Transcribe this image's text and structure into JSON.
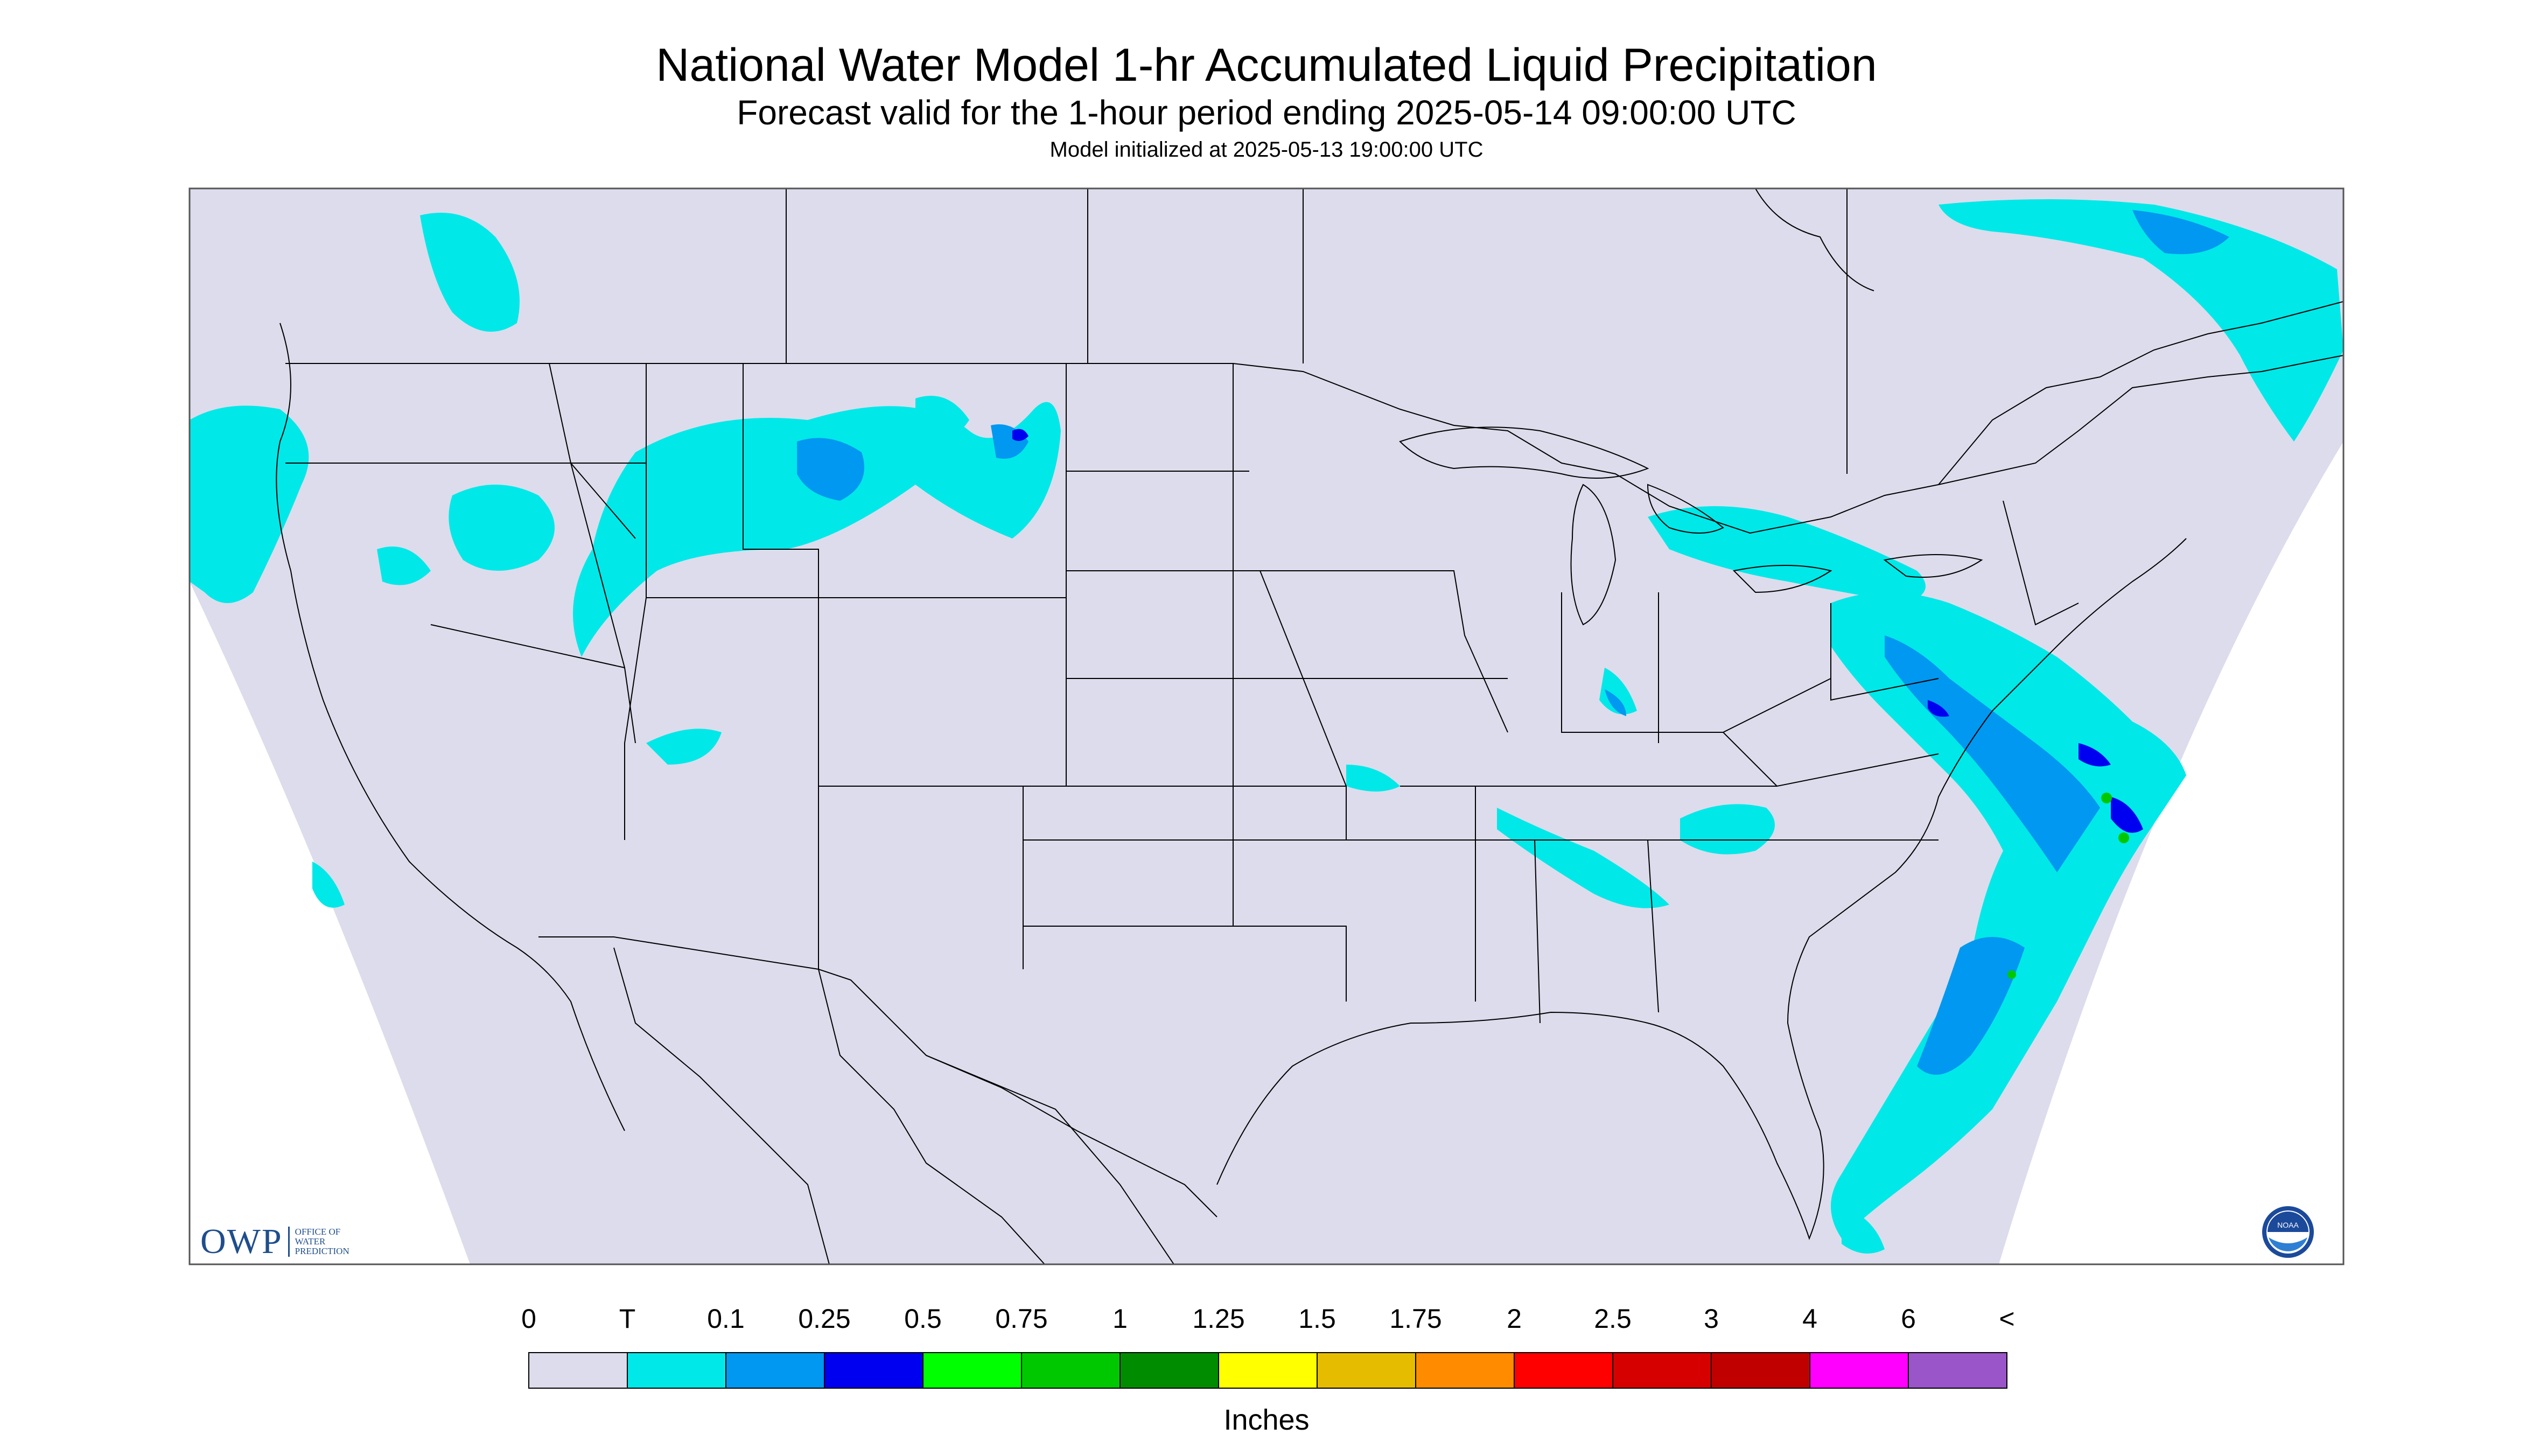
{
  "header": {
    "title": "National Water Model 1-hr Accumulated Liquid Precipitation",
    "subtitle": "Forecast valid for the 1-hour period ending 2025-05-14 09:00:00 UTC",
    "init": "Model initialized at 2025-05-13 19:00:00 UTC"
  },
  "legend": {
    "labels": [
      "0",
      "T",
      "0.1",
      "0.25",
      "0.5",
      "0.75",
      "1",
      "1.25",
      "1.5",
      "1.75",
      "2",
      "2.5",
      "3",
      "4",
      "6",
      "<"
    ],
    "colors": [
      "#dcdcec",
      "#00e8e8",
      "#0098f0",
      "#0000f0",
      "#00ff00",
      "#00c800",
      "#008c00",
      "#ffff00",
      "#e6bc00",
      "#ff8c00",
      "#ff0000",
      "#d70000",
      "#c00000",
      "#ff00ff",
      "#9a55c9"
    ],
    "units": "Inches"
  },
  "logos": {
    "owp_mark": "OWP",
    "owp_text": [
      "OFFICE OF",
      "WATER",
      "PREDICTION"
    ],
    "noaa": "NOAA"
  },
  "map": {
    "background_color": "#dcdcec",
    "outside_color": "#ffffff",
    "border_color": "#000000",
    "precip_colors": {
      "trace": "#00e8e8",
      "light": "#0098f0",
      "moderate": "#0000f0",
      "heavy": "#00c800"
    }
  }
}
